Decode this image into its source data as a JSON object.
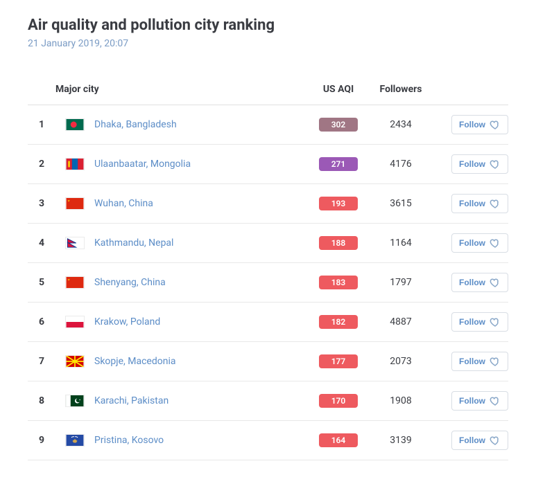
{
  "title": "Air quality and pollution city ranking",
  "timestamp": "21 January 2019, 20:07",
  "columns": {
    "city": "Major city",
    "aqi": "US AQI",
    "followers": "Followers"
  },
  "follow_label": "Follow",
  "aqi_colors": {
    "maroon": "#a07684",
    "purple": "#9b59b6",
    "red": "#ee5a5f"
  },
  "rows": [
    {
      "rank": 1,
      "city": "Dhaka, Bangladesh",
      "aqi": 302,
      "aqi_level": "maroon",
      "followers": 2434,
      "flag": "bd"
    },
    {
      "rank": 2,
      "city": "Ulaanbaatar, Mongolia",
      "aqi": 271,
      "aqi_level": "purple",
      "followers": 4176,
      "flag": "mn"
    },
    {
      "rank": 3,
      "city": "Wuhan, China",
      "aqi": 193,
      "aqi_level": "red",
      "followers": 3615,
      "flag": "cn"
    },
    {
      "rank": 4,
      "city": "Kathmandu, Nepal",
      "aqi": 188,
      "aqi_level": "red",
      "followers": 1164,
      "flag": "np"
    },
    {
      "rank": 5,
      "city": "Shenyang, China",
      "aqi": 183,
      "aqi_level": "red",
      "followers": 1797,
      "flag": "cn"
    },
    {
      "rank": 6,
      "city": "Krakow, Poland",
      "aqi": 182,
      "aqi_level": "red",
      "followers": 4887,
      "flag": "pl"
    },
    {
      "rank": 7,
      "city": "Skopje, Macedonia",
      "aqi": 177,
      "aqi_level": "red",
      "followers": 2073,
      "flag": "mk"
    },
    {
      "rank": 8,
      "city": "Karachi, Pakistan",
      "aqi": 170,
      "aqi_level": "red",
      "followers": 1908,
      "flag": "pk"
    },
    {
      "rank": 9,
      "city": "Pristina, Kosovo",
      "aqi": 164,
      "aqi_level": "red",
      "followers": 3139,
      "flag": "xk"
    }
  ]
}
